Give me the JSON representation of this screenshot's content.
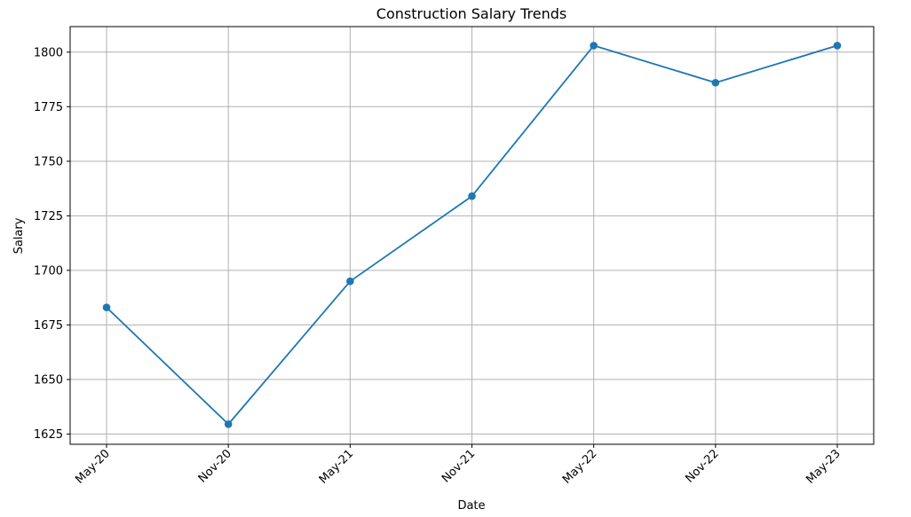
{
  "chart_data": {
    "type": "line",
    "title": "Construction Salary Trends",
    "xlabel": "Date",
    "ylabel": "Salary",
    "categories": [
      "May-20",
      "Nov-20",
      "May-21",
      "Nov-21",
      "May-22",
      "Nov-22",
      "May-23"
    ],
    "series": [
      {
        "values": [
          1683,
          1629.5,
          1695,
          1734,
          1803,
          1786,
          1803
        ],
        "color": "#1f77b4",
        "marker": "circle"
      }
    ],
    "ylim": [
      1620.3,
      1811.7
    ],
    "yticks": [
      1625,
      1650,
      1675,
      1700,
      1725,
      1750,
      1775,
      1800
    ],
    "grid": true,
    "tick_label_rotation": 45
  }
}
